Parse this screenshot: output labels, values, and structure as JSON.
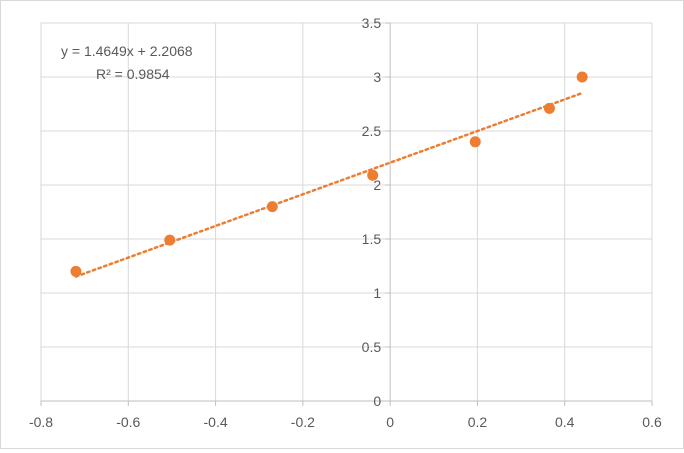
{
  "chart_data": {
    "type": "scatter",
    "title": "",
    "xlabel": "",
    "ylabel": "",
    "xlim": [
      -0.8,
      0.6
    ],
    "ylim": [
      0,
      3.5
    ],
    "x_ticks": [
      -0.8,
      -0.6,
      -0.4,
      -0.2,
      0,
      0.2,
      0.4,
      0.6
    ],
    "y_ticks": [
      0,
      0.5,
      1,
      1.5,
      2,
      2.5,
      3,
      3.5
    ],
    "x_tick_labels": [
      "-0.8",
      "-0.6",
      "-0.4",
      "-0.2",
      "0",
      "0.2",
      "0.4",
      "0.6"
    ],
    "y_tick_labels": [
      "0",
      "0.5",
      "1",
      "1.5",
      "2",
      "2.5",
      "3",
      "3.5"
    ],
    "grid": true,
    "legend": "none",
    "series": [
      {
        "x": [
          -0.72,
          -0.505,
          -0.27,
          -0.04,
          0.195,
          0.365,
          0.44
        ],
        "y": [
          1.2,
          1.49,
          1.8,
          2.09,
          2.4,
          2.71,
          3.0
        ],
        "color": "#ED7D31"
      }
    ],
    "trendline": {
      "kind": "linear",
      "slope": 1.4649,
      "intercept": 2.2068,
      "x_range": [
        -0.72,
        0.44
      ],
      "style": "dotted",
      "color": "#ED7D31"
    },
    "annotations": {
      "equation": "y = 1.4649x + 2.2068",
      "r_squared": "R² = 0.9854"
    },
    "grid_color": "#d9d9d9",
    "axis_color": "#bfbfbf"
  }
}
